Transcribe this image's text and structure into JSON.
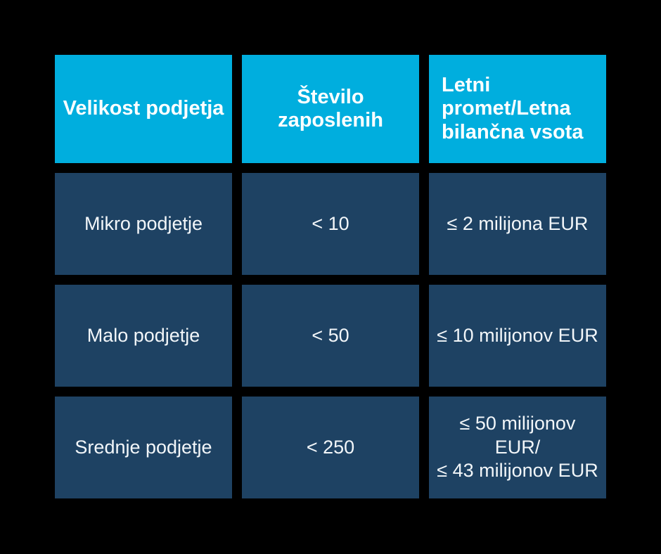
{
  "page": {
    "background_color": "#000000"
  },
  "table": {
    "colors": {
      "header_bg": "#00AEDE",
      "cell_bg": "#1E4263",
      "header_text": "#FFFFFF",
      "cell_text": "#F2F6F9"
    },
    "headers": [
      {
        "label": "Velikost podjetja"
      },
      {
        "label": "Število zaposlenih"
      },
      {
        "label": "Letni promet/Letna\nbilančna vsota"
      }
    ],
    "rows": [
      {
        "cells": [
          "Mikro podjetje",
          "< 10",
          "≤ 2 milijona EUR"
        ]
      },
      {
        "cells": [
          "Malo podjetje",
          "< 50",
          "≤ 10 milijonov EUR"
        ]
      },
      {
        "cells": [
          "Srednje podjetje",
          "< 250",
          "≤ 50 milijonov EUR/\n≤ 43 milijonov EUR"
        ]
      }
    ]
  },
  "chart_data": {
    "type": "table",
    "columns": [
      "Velikost podjetja",
      "Število zaposlenih",
      "Letni promet/Letna bilančna vsota"
    ],
    "rows": [
      [
        "Mikro podjetje",
        "< 10",
        "≤ 2 milijona EUR"
      ],
      [
        "Malo podjetje",
        "< 50",
        "≤ 10 milijonov EUR"
      ],
      [
        "Srednje podjetje",
        "< 250",
        "≤ 50 milijonov EUR/ ≤ 43 milijonov EUR"
      ]
    ],
    "title": "",
    "legend": "none",
    "grid": "off"
  }
}
